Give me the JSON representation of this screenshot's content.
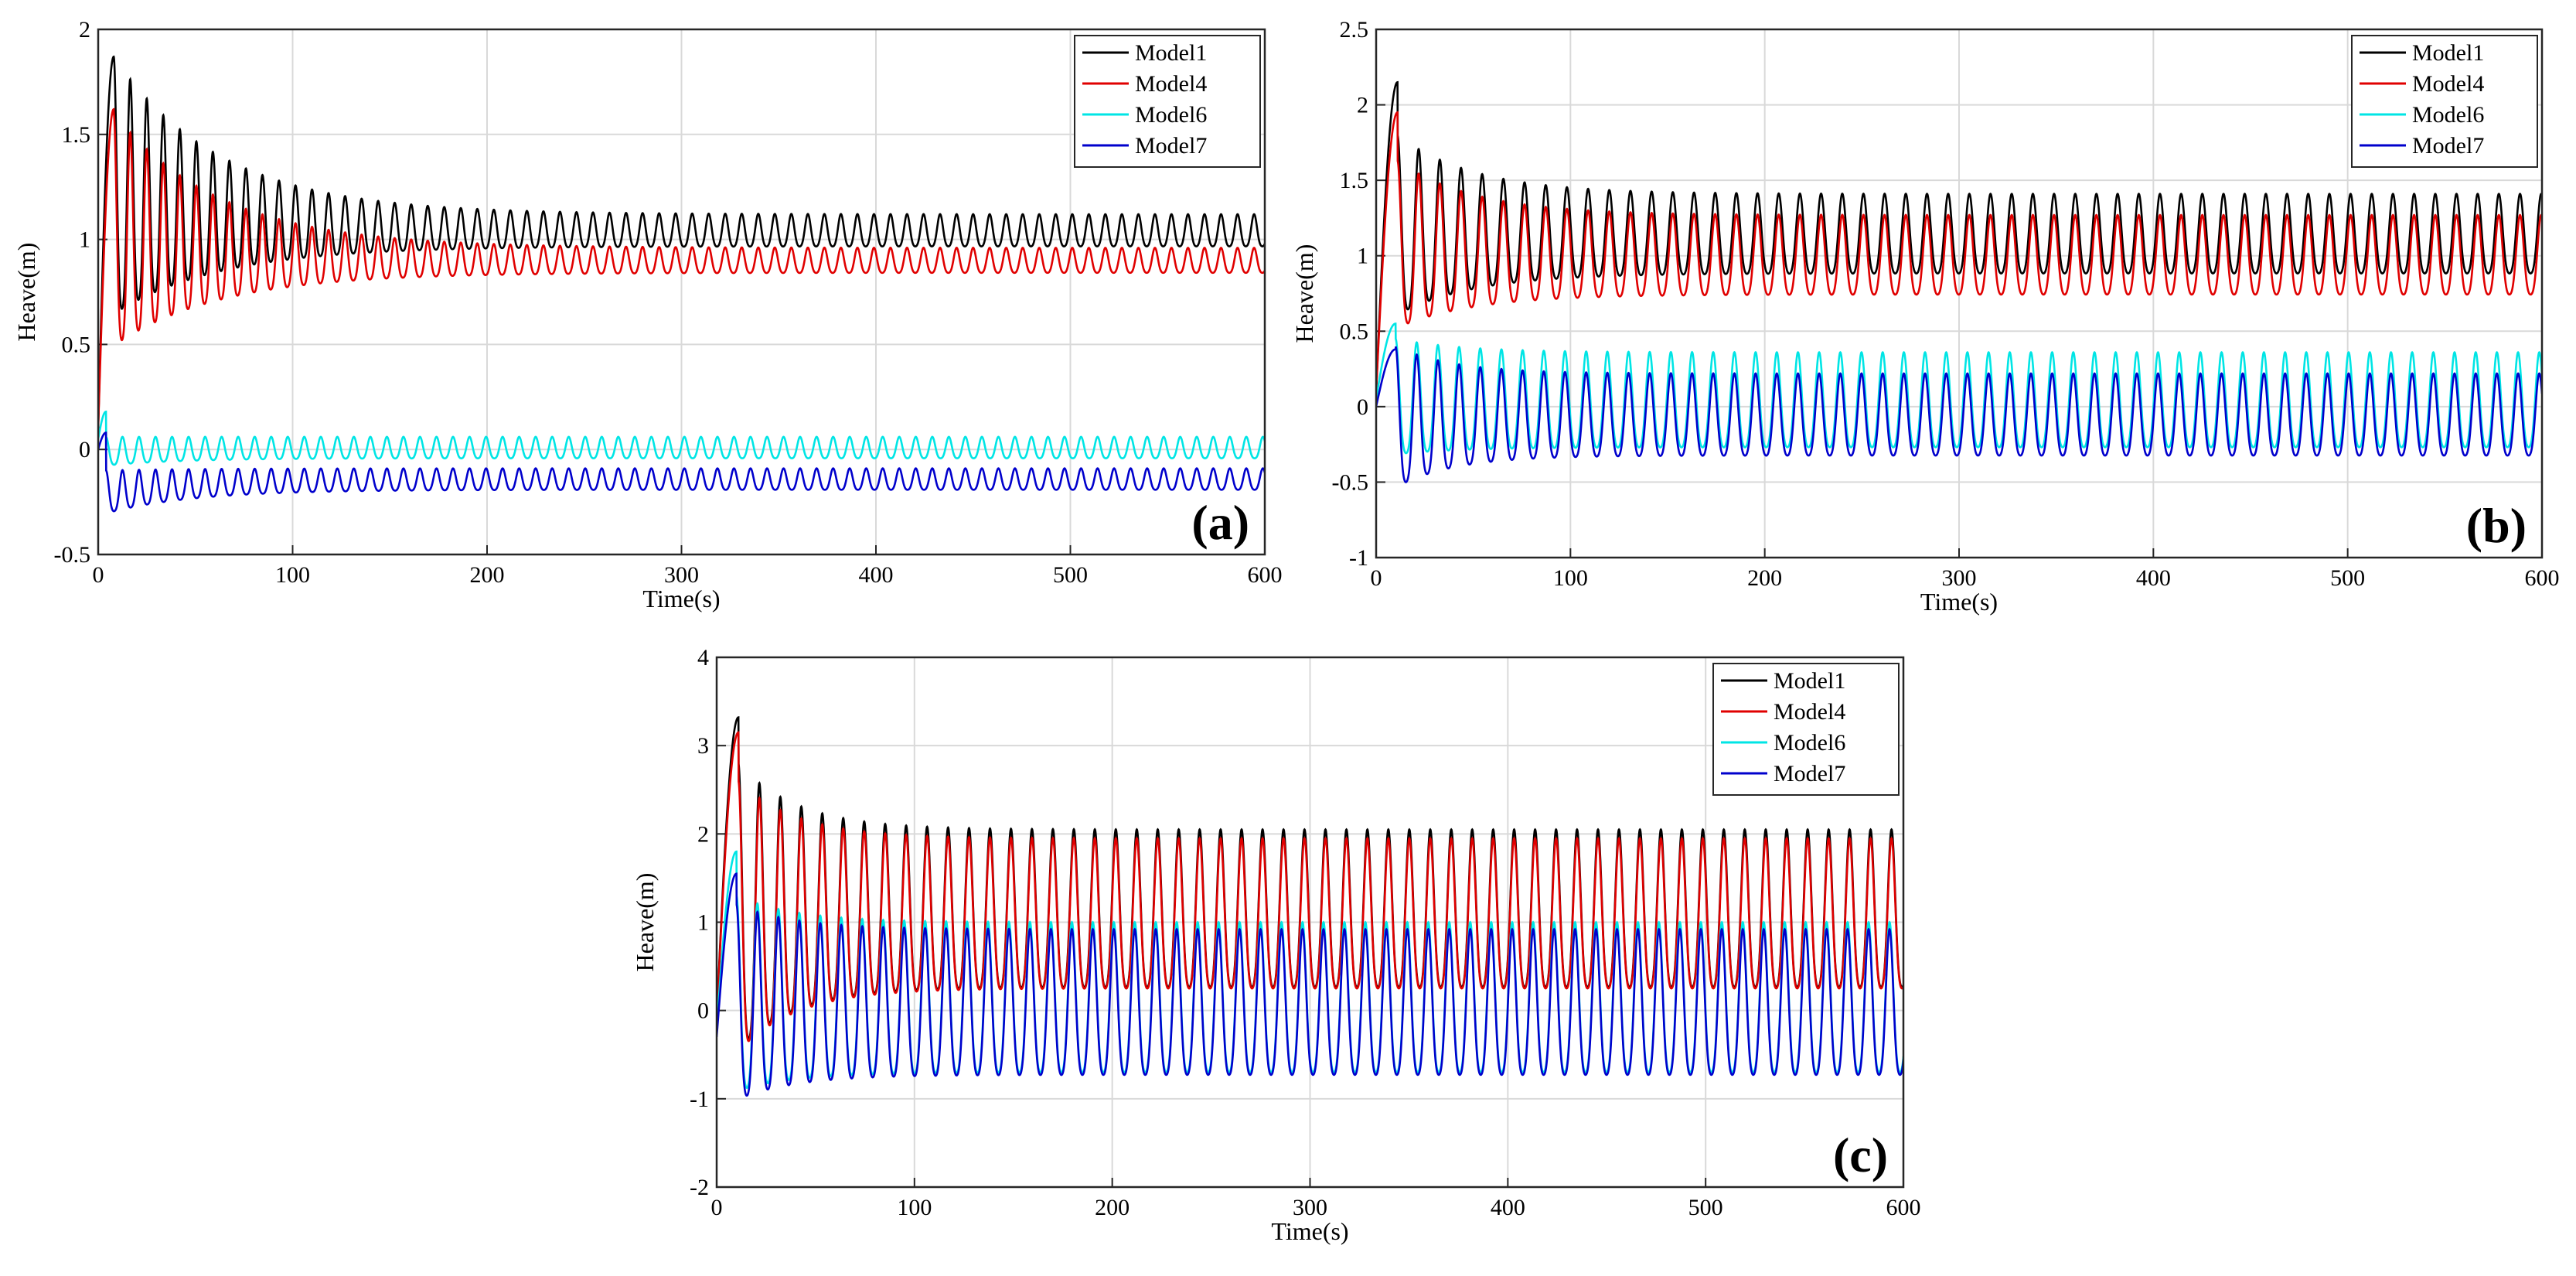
{
  "figure": {
    "background": "#ffffff",
    "grid_color": "#d9d9d9",
    "axes_color": "#262626"
  },
  "chart_data": [
    {
      "type": "line",
      "panel": "(a)",
      "xlabel": "Time(s)",
      "ylabel": "Heave(m)",
      "xlim": [
        0,
        600
      ],
      "ylim": [
        -0.5,
        2
      ],
      "xticks": [
        0,
        100,
        200,
        300,
        400,
        500,
        600
      ],
      "yticks": [
        -0.5,
        0,
        0.5,
        1,
        1.5,
        2
      ],
      "grid": true,
      "legend_position": "top-right",
      "period": 8.5,
      "series": [
        {
          "name": "Model1",
          "color": "#000000",
          "start": 0.1,
          "peak": [
            8,
            1.87
          ],
          "mean0": 1.15,
          "amp0": 0.72,
          "decay": 55,
          "mean_inf": 1.03,
          "amp_inf": 0.09
        },
        {
          "name": "Model4",
          "color": "#e00000",
          "start": 0.1,
          "peak": [
            8,
            1.62
          ],
          "mean0": 0.95,
          "amp0": 0.65,
          "decay": 55,
          "mean_inf": 0.89,
          "amp_inf": 0.07
        },
        {
          "name": "Model6",
          "color": "#00e5e5",
          "start": 0.05,
          "peak": [
            4,
            0.18
          ],
          "mean0": -0.02,
          "amp0": 0.08,
          "decay": 40,
          "mean_inf": 0.0,
          "amp_inf": 0.06
        },
        {
          "name": "Model7",
          "color": "#0000cc",
          "start": 0.0,
          "peak": [
            4,
            0.08
          ],
          "mean0": -0.22,
          "amp0": 0.12,
          "decay": 45,
          "mean_inf": -0.15,
          "amp_inf": 0.06
        }
      ]
    },
    {
      "type": "line",
      "panel": "(b)",
      "xlabel": "Time(s)",
      "ylabel": "Heave(m)",
      "xlim": [
        0,
        600
      ],
      "ylim": [
        -1,
        2.5
      ],
      "xticks": [
        0,
        100,
        200,
        300,
        400,
        500,
        600
      ],
      "yticks": [
        -1,
        -0.5,
        0,
        0.5,
        1,
        1.5,
        2,
        2.5
      ],
      "grid": true,
      "legend_position": "top-right",
      "period": 10.9,
      "series": [
        {
          "name": "Model1",
          "color": "#000000",
          "start": 0.1,
          "peak": [
            11,
            2.15
          ],
          "mean0": 1.1,
          "amp0": 0.7,
          "decay": 40,
          "mean_inf": 1.1,
          "amp_inf": 0.31
        },
        {
          "name": "Model4",
          "color": "#e00000",
          "start": 0.1,
          "peak": [
            11,
            1.95
          ],
          "mean0": 0.98,
          "amp0": 0.65,
          "decay": 40,
          "mean_inf": 0.96,
          "amp_inf": 0.31
        },
        {
          "name": "Model6",
          "color": "#00e5e5",
          "start": 0.05,
          "peak": [
            10,
            0.55
          ],
          "mean0": 0.0,
          "amp0": 0.45,
          "decay": 35,
          "mean_inf": -0.01,
          "amp_inf": 0.37
        },
        {
          "name": "Model7",
          "color": "#0000cc",
          "start": 0.0,
          "peak": [
            10,
            0.38
          ],
          "mean0": -0.15,
          "amp0": 0.55,
          "decay": 30,
          "mean_inf": -0.1,
          "amp_inf": 0.32
        }
      ]
    },
    {
      "type": "line",
      "panel": "(c)",
      "xlabel": "Time(s)",
      "ylabel": "Heave(m)",
      "xlim": [
        0,
        600
      ],
      "ylim": [
        -2,
        4
      ],
      "xticks": [
        0,
        100,
        200,
        300,
        400,
        500,
        600
      ],
      "yticks": [
        -2,
        -1,
        0,
        1,
        2,
        3,
        4
      ],
      "grid": true,
      "legend_position": "top-right",
      "period": 10.6,
      "series": [
        {
          "name": "Model1",
          "color": "#000000",
          "start": -0.1,
          "peak": [
            11,
            3.32
          ],
          "mean0": 0.9,
          "amp0": 1.9,
          "decay": 30,
          "mean_inf": 1.0,
          "amp_inf": 1.05
        },
        {
          "name": "Model4",
          "color": "#e00000",
          "start": -0.1,
          "peak": [
            11,
            3.15
          ],
          "mean0": 0.8,
          "amp0": 1.8,
          "decay": 30,
          "mean_inf": 0.95,
          "amp_inf": 1.0
        },
        {
          "name": "Model6",
          "color": "#00e5e5",
          "start": -0.2,
          "peak": [
            10,
            1.8
          ],
          "mean0": 0.0,
          "amp0": 1.3,
          "decay": 30,
          "mean_inf": 0.0,
          "amp_inf": 1.0
        },
        {
          "name": "Model7",
          "color": "#0000cc",
          "start": -0.3,
          "peak": [
            10,
            1.55
          ],
          "mean0": -0.1,
          "amp0": 1.3,
          "decay": 30,
          "mean_inf": -0.05,
          "amp_inf": 0.97
        }
      ]
    }
  ]
}
